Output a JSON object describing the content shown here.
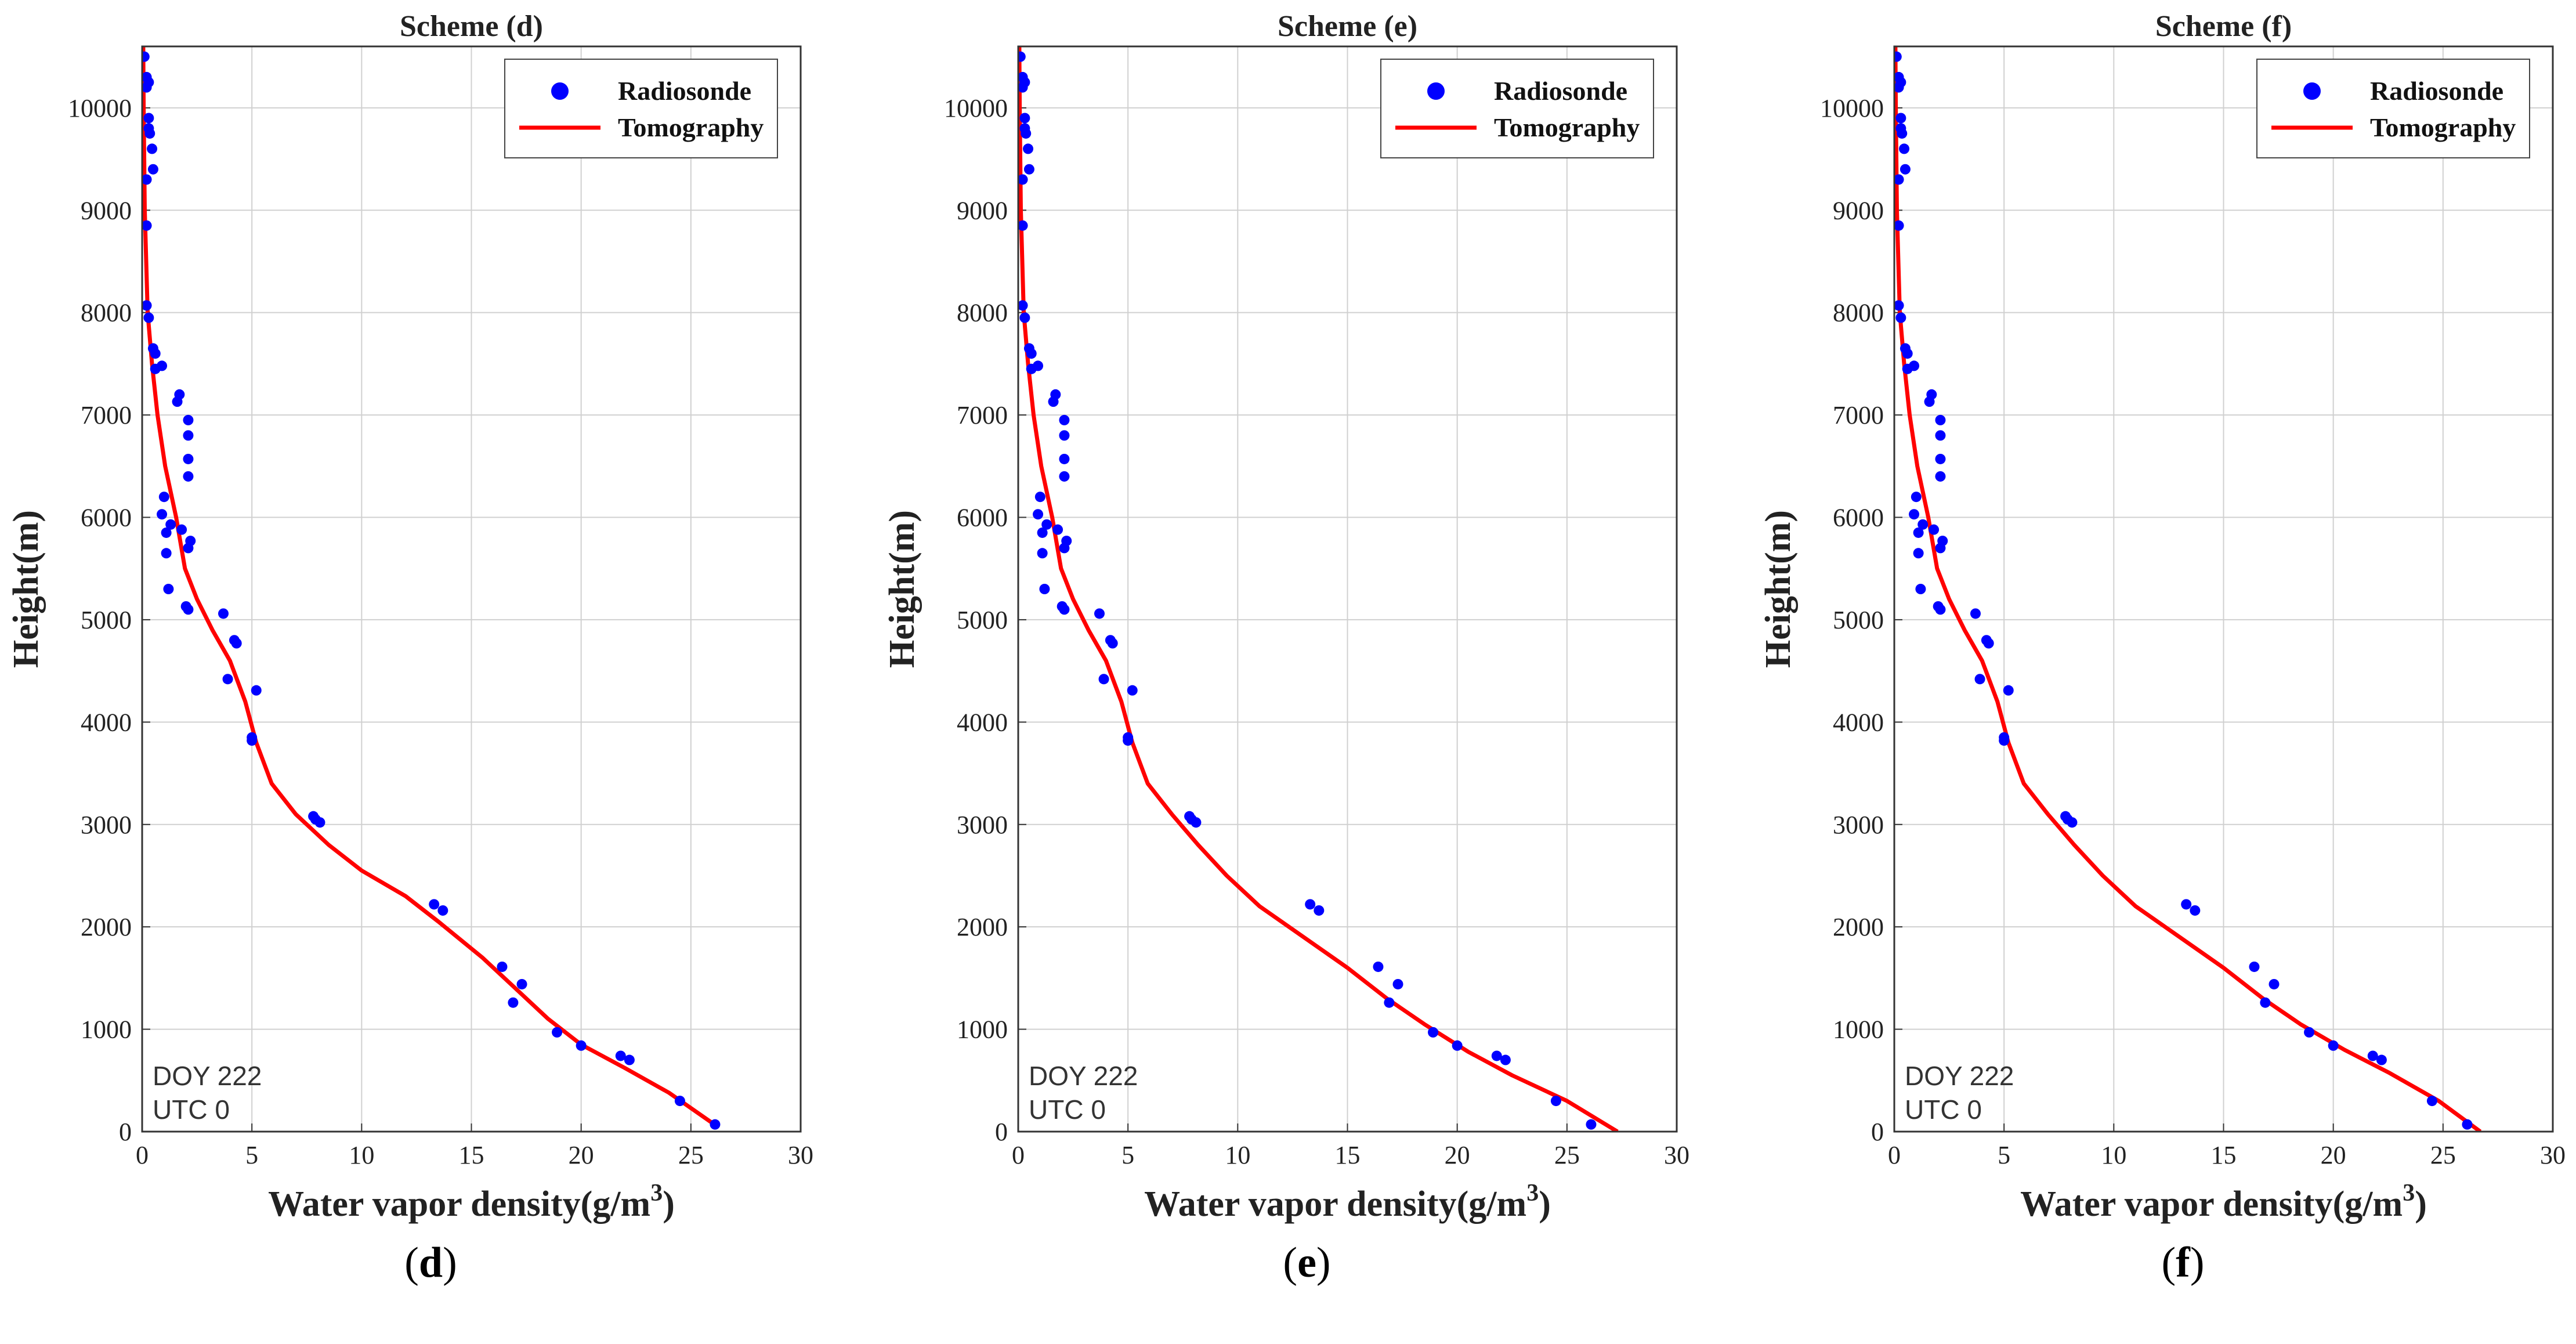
{
  "figure": {
    "background": "#ffffff"
  },
  "colors": {
    "radiosonde": "#0000ff",
    "tomography": "#ff0000",
    "grid": "#d0d0d0",
    "axis": "#333333"
  },
  "chart_data": [
    {
      "type": "scatter",
      "title": "Scheme (d)",
      "xlabel": "Water vapor density(g/m",
      "xlabel_sup": "3",
      "xlabel_close": ")",
      "ylabel": "Height(m)",
      "xlim": [
        0,
        30
      ],
      "ylim": [
        0,
        10600
      ],
      "xticks": [
        0,
        5,
        10,
        15,
        20,
        25,
        30
      ],
      "yticks": [
        0,
        1000,
        2000,
        3000,
        4000,
        5000,
        6000,
        7000,
        8000,
        9000,
        10000
      ],
      "grid": true,
      "legend_position": "top-right",
      "annotation": [
        "DOY 222",
        "UTC 0"
      ],
      "caption": {
        "open": "(",
        "letter": "d",
        "close": ")"
      },
      "series": [
        {
          "name": "Radiosonde",
          "kind": "scatter",
          "points": [
            [
              0.1,
              10500
            ],
            [
              0.2,
              10300
            ],
            [
              0.3,
              10250
            ],
            [
              0.2,
              10200
            ],
            [
              0.3,
              9900
            ],
            [
              0.3,
              9800
            ],
            [
              0.35,
              9750
            ],
            [
              0.45,
              9600
            ],
            [
              0.5,
              9400
            ],
            [
              0.2,
              9300
            ],
            [
              0.2,
              8850
            ],
            [
              0.2,
              8070
            ],
            [
              0.3,
              7950
            ],
            [
              0.5,
              7650
            ],
            [
              0.6,
              7600
            ],
            [
              0.6,
              7450
            ],
            [
              0.9,
              7480
            ],
            [
              1.7,
              7200
            ],
            [
              1.6,
              7130
            ],
            [
              2.1,
              6950
            ],
            [
              2.1,
              6800
            ],
            [
              2.1,
              6570
            ],
            [
              2.1,
              6400
            ],
            [
              1.0,
              6200
            ],
            [
              0.9,
              6030
            ],
            [
              1.3,
              5930
            ],
            [
              1.8,
              5880
            ],
            [
              1.1,
              5850
            ],
            [
              2.2,
              5770
            ],
            [
              2.1,
              5700
            ],
            [
              1.1,
              5650
            ],
            [
              1.2,
              5300
            ],
            [
              2.0,
              5130
            ],
            [
              2.1,
              5100
            ],
            [
              3.7,
              5060
            ],
            [
              4.2,
              4800
            ],
            [
              4.3,
              4770
            ],
            [
              5.2,
              4310
            ],
            [
              3.9,
              4420
            ],
            [
              5.0,
              3850
            ],
            [
              5.0,
              3820
            ],
            [
              7.8,
              3080
            ],
            [
              7.9,
              3050
            ],
            [
              8.1,
              3020
            ],
            [
              13.3,
              2220
            ],
            [
              13.7,
              2160
            ],
            [
              16.4,
              1610
            ],
            [
              17.3,
              1440
            ],
            [
              16.9,
              1260
            ],
            [
              18.9,
              970
            ],
            [
              20.0,
              840
            ],
            [
              21.8,
              740
            ],
            [
              22.2,
              700
            ],
            [
              24.5,
              300
            ],
            [
              26.1,
              70
            ]
          ]
        },
        {
          "name": "Tomography",
          "kind": "line",
          "points": [
            [
              0.05,
              10600
            ],
            [
              0.07,
              10000
            ],
            [
              0.12,
              9000
            ],
            [
              0.25,
              8000
            ],
            [
              0.45,
              7500
            ],
            [
              0.7,
              7000
            ],
            [
              1.05,
              6500
            ],
            [
              1.55,
              6000
            ],
            [
              1.95,
              5500
            ],
            [
              2.5,
              5200
            ],
            [
              3.2,
              4900
            ],
            [
              4.0,
              4600
            ],
            [
              4.7,
              4200
            ],
            [
              5.2,
              3800
            ],
            [
              5.9,
              3400
            ],
            [
              7.0,
              3100
            ],
            [
              8.5,
              2800
            ],
            [
              10.0,
              2550
            ],
            [
              12.0,
              2300
            ],
            [
              13.5,
              2050
            ],
            [
              15.5,
              1700
            ],
            [
              17.0,
              1400
            ],
            [
              18.5,
              1100
            ],
            [
              20.0,
              850
            ],
            [
              22.0,
              620
            ],
            [
              24.0,
              380
            ],
            [
              26.0,
              80
            ]
          ]
        }
      ]
    },
    {
      "type": "scatter",
      "title": "Scheme (e)",
      "xlabel": "Water vapor density(g/m",
      "xlabel_sup": "3",
      "xlabel_close": ")",
      "ylabel": "Height(m)",
      "xlim": [
        0,
        30
      ],
      "ylim": [
        0,
        10600
      ],
      "xticks": [
        0,
        5,
        10,
        15,
        20,
        25,
        30
      ],
      "yticks": [
        0,
        1000,
        2000,
        3000,
        4000,
        5000,
        6000,
        7000,
        8000,
        9000,
        10000
      ],
      "grid": true,
      "legend_position": "top-right",
      "annotation": [
        "DOY 222",
        "UTC 0"
      ],
      "caption": {
        "open": "(",
        "letter": "e",
        "close": ")"
      },
      "series": [
        {
          "name": "Radiosonde",
          "kind": "scatter",
          "points": [
            [
              0.1,
              10500
            ],
            [
              0.2,
              10300
            ],
            [
              0.3,
              10250
            ],
            [
              0.2,
              10200
            ],
            [
              0.3,
              9900
            ],
            [
              0.3,
              9800
            ],
            [
              0.35,
              9750
            ],
            [
              0.45,
              9600
            ],
            [
              0.5,
              9400
            ],
            [
              0.2,
              9300
            ],
            [
              0.2,
              8850
            ],
            [
              0.2,
              8070
            ],
            [
              0.3,
              7950
            ],
            [
              0.5,
              7650
            ],
            [
              0.6,
              7600
            ],
            [
              0.6,
              7450
            ],
            [
              0.9,
              7480
            ],
            [
              1.7,
              7200
            ],
            [
              1.6,
              7130
            ],
            [
              2.1,
              6950
            ],
            [
              2.1,
              6800
            ],
            [
              2.1,
              6570
            ],
            [
              2.1,
              6400
            ],
            [
              1.0,
              6200
            ],
            [
              0.9,
              6030
            ],
            [
              1.3,
              5930
            ],
            [
              1.8,
              5880
            ],
            [
              1.1,
              5850
            ],
            [
              2.2,
              5770
            ],
            [
              2.1,
              5700
            ],
            [
              1.1,
              5650
            ],
            [
              1.2,
              5300
            ],
            [
              2.0,
              5130
            ],
            [
              2.1,
              5100
            ],
            [
              3.7,
              5060
            ],
            [
              4.2,
              4800
            ],
            [
              4.3,
              4770
            ],
            [
              5.2,
              4310
            ],
            [
              3.9,
              4420
            ],
            [
              5.0,
              3850
            ],
            [
              5.0,
              3820
            ],
            [
              7.8,
              3080
            ],
            [
              7.9,
              3050
            ],
            [
              8.1,
              3020
            ],
            [
              13.3,
              2220
            ],
            [
              13.7,
              2160
            ],
            [
              16.4,
              1610
            ],
            [
              17.3,
              1440
            ],
            [
              16.9,
              1260
            ],
            [
              18.9,
              970
            ],
            [
              20.0,
              840
            ],
            [
              21.8,
              740
            ],
            [
              22.2,
              700
            ],
            [
              24.5,
              300
            ],
            [
              26.1,
              70
            ]
          ]
        },
        {
          "name": "Tomography",
          "kind": "line",
          "points": [
            [
              0.05,
              10600
            ],
            [
              0.07,
              10000
            ],
            [
              0.12,
              9000
            ],
            [
              0.25,
              8000
            ],
            [
              0.45,
              7500
            ],
            [
              0.7,
              7000
            ],
            [
              1.05,
              6500
            ],
            [
              1.55,
              6000
            ],
            [
              1.95,
              5500
            ],
            [
              2.5,
              5200
            ],
            [
              3.2,
              4900
            ],
            [
              4.0,
              4600
            ],
            [
              4.7,
              4200
            ],
            [
              5.2,
              3800
            ],
            [
              5.9,
              3400
            ],
            [
              7.0,
              3100
            ],
            [
              8.2,
              2800
            ],
            [
              9.5,
              2500
            ],
            [
              11.0,
              2200
            ],
            [
              13.0,
              1900
            ],
            [
              15.0,
              1600
            ],
            [
              16.8,
              1300
            ],
            [
              18.5,
              1050
            ],
            [
              20.5,
              780
            ],
            [
              22.5,
              550
            ],
            [
              25.0,
              300
            ],
            [
              27.3,
              0
            ]
          ]
        }
      ]
    },
    {
      "type": "scatter",
      "title": "Scheme (f)",
      "xlabel": "Water vapor density(g/m",
      "xlabel_sup": "3",
      "xlabel_close": ")",
      "ylabel": "Height(m)",
      "xlim": [
        0,
        30
      ],
      "ylim": [
        0,
        10600
      ],
      "xticks": [
        0,
        5,
        10,
        15,
        20,
        25,
        30
      ],
      "yticks": [
        0,
        1000,
        2000,
        3000,
        4000,
        5000,
        6000,
        7000,
        8000,
        9000,
        10000
      ],
      "grid": true,
      "legend_position": "top-right",
      "annotation": [
        "DOY 222",
        "UTC 0"
      ],
      "caption": {
        "open": "(",
        "letter": "f",
        "close": ")"
      },
      "series": [
        {
          "name": "Radiosonde",
          "kind": "scatter",
          "points": [
            [
              0.1,
              10500
            ],
            [
              0.2,
              10300
            ],
            [
              0.3,
              10250
            ],
            [
              0.2,
              10200
            ],
            [
              0.3,
              9900
            ],
            [
              0.3,
              9800
            ],
            [
              0.35,
              9750
            ],
            [
              0.45,
              9600
            ],
            [
              0.5,
              9400
            ],
            [
              0.2,
              9300
            ],
            [
              0.2,
              8850
            ],
            [
              0.2,
              8070
            ],
            [
              0.3,
              7950
            ],
            [
              0.5,
              7650
            ],
            [
              0.6,
              7600
            ],
            [
              0.6,
              7450
            ],
            [
              0.9,
              7480
            ],
            [
              1.7,
              7200
            ],
            [
              1.6,
              7130
            ],
            [
              2.1,
              6950
            ],
            [
              2.1,
              6800
            ],
            [
              2.1,
              6570
            ],
            [
              2.1,
              6400
            ],
            [
              1.0,
              6200
            ],
            [
              0.9,
              6030
            ],
            [
              1.3,
              5930
            ],
            [
              1.8,
              5880
            ],
            [
              1.1,
              5850
            ],
            [
              2.2,
              5770
            ],
            [
              2.1,
              5700
            ],
            [
              1.1,
              5650
            ],
            [
              1.2,
              5300
            ],
            [
              2.0,
              5130
            ],
            [
              2.1,
              5100
            ],
            [
              3.7,
              5060
            ],
            [
              4.2,
              4800
            ],
            [
              4.3,
              4770
            ],
            [
              5.2,
              4310
            ],
            [
              3.9,
              4420
            ],
            [
              5.0,
              3850
            ],
            [
              5.0,
              3820
            ],
            [
              7.8,
              3080
            ],
            [
              7.9,
              3050
            ],
            [
              8.1,
              3020
            ],
            [
              13.3,
              2220
            ],
            [
              13.7,
              2160
            ],
            [
              16.4,
              1610
            ],
            [
              17.3,
              1440
            ],
            [
              16.9,
              1260
            ],
            [
              18.9,
              970
            ],
            [
              20.0,
              840
            ],
            [
              21.8,
              740
            ],
            [
              22.2,
              700
            ],
            [
              24.5,
              300
            ],
            [
              26.1,
              70
            ]
          ]
        },
        {
          "name": "Tomography",
          "kind": "line",
          "points": [
            [
              0.05,
              10600
            ],
            [
              0.07,
              10000
            ],
            [
              0.12,
              9000
            ],
            [
              0.25,
              8000
            ],
            [
              0.45,
              7500
            ],
            [
              0.7,
              7000
            ],
            [
              1.05,
              6500
            ],
            [
              1.55,
              6000
            ],
            [
              1.95,
              5500
            ],
            [
              2.5,
              5200
            ],
            [
              3.2,
              4900
            ],
            [
              4.0,
              4600
            ],
            [
              4.7,
              4200
            ],
            [
              5.2,
              3800
            ],
            [
              5.9,
              3400
            ],
            [
              7.0,
              3100
            ],
            [
              8.2,
              2800
            ],
            [
              9.5,
              2500
            ],
            [
              11.0,
              2200
            ],
            [
              13.0,
              1900
            ],
            [
              15.0,
              1600
            ],
            [
              16.8,
              1300
            ],
            [
              18.5,
              1050
            ],
            [
              20.5,
              800
            ],
            [
              22.5,
              580
            ],
            [
              24.8,
              300
            ],
            [
              26.7,
              0
            ]
          ]
        }
      ]
    }
  ]
}
